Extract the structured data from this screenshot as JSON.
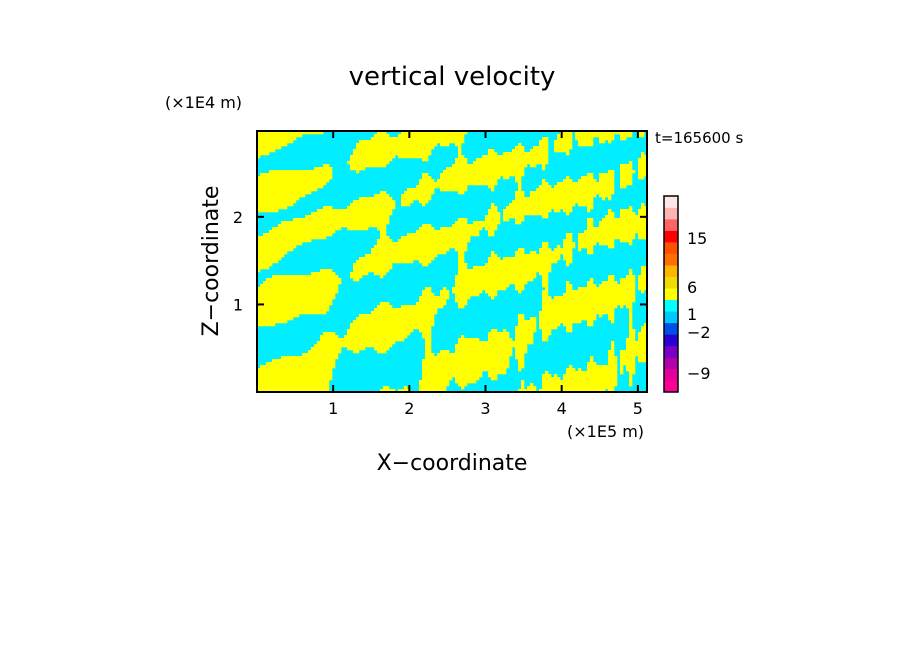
{
  "chart_data": {
    "type": "heatmap",
    "title": "vertical velocity",
    "xlabel": "X−coordinate",
    "ylabel": "Z−coordinate",
    "x_unit": "(×1E5 m)",
    "y_unit": "(×1E4 m)",
    "time_label": "t=165600 s",
    "xlim": [
      0,
      5.12
    ],
    "ylim": [
      0,
      2.98
    ],
    "xticks": [
      1,
      2,
      3,
      4,
      5
    ],
    "yticks": [
      1,
      2
    ],
    "xtick_labels": [
      "1",
      "2",
      "3",
      "4",
      "5"
    ],
    "ytick_labels": [
      "1",
      "2"
    ],
    "field_colors": {
      "positive": "#ffff00",
      "negative": "#00eeff"
    },
    "colorbar": {
      "levels": [
        {
          "color": "#ff0096"
        },
        {
          "color": "#e6009b"
        },
        {
          "color": "#b400aa"
        },
        {
          "color": "#7800c8"
        },
        {
          "color": "#2800d2"
        },
        {
          "color": "#0050e6"
        },
        {
          "color": "#00c8ff"
        },
        {
          "color": "#00ffff"
        },
        {
          "color": "#ffff00"
        },
        {
          "color": "#f0dc00"
        },
        {
          "color": "#ffb400"
        },
        {
          "color": "#ff6e00"
        },
        {
          "color": "#ff5000"
        },
        {
          "color": "#ff0000"
        },
        {
          "color": "#ff6464"
        },
        {
          "color": "#ffb4b4"
        },
        {
          "color": "#ffe6e6"
        }
      ],
      "tick_labels": [
        "15",
        "6",
        "1",
        "−2",
        "−9"
      ]
    }
  }
}
